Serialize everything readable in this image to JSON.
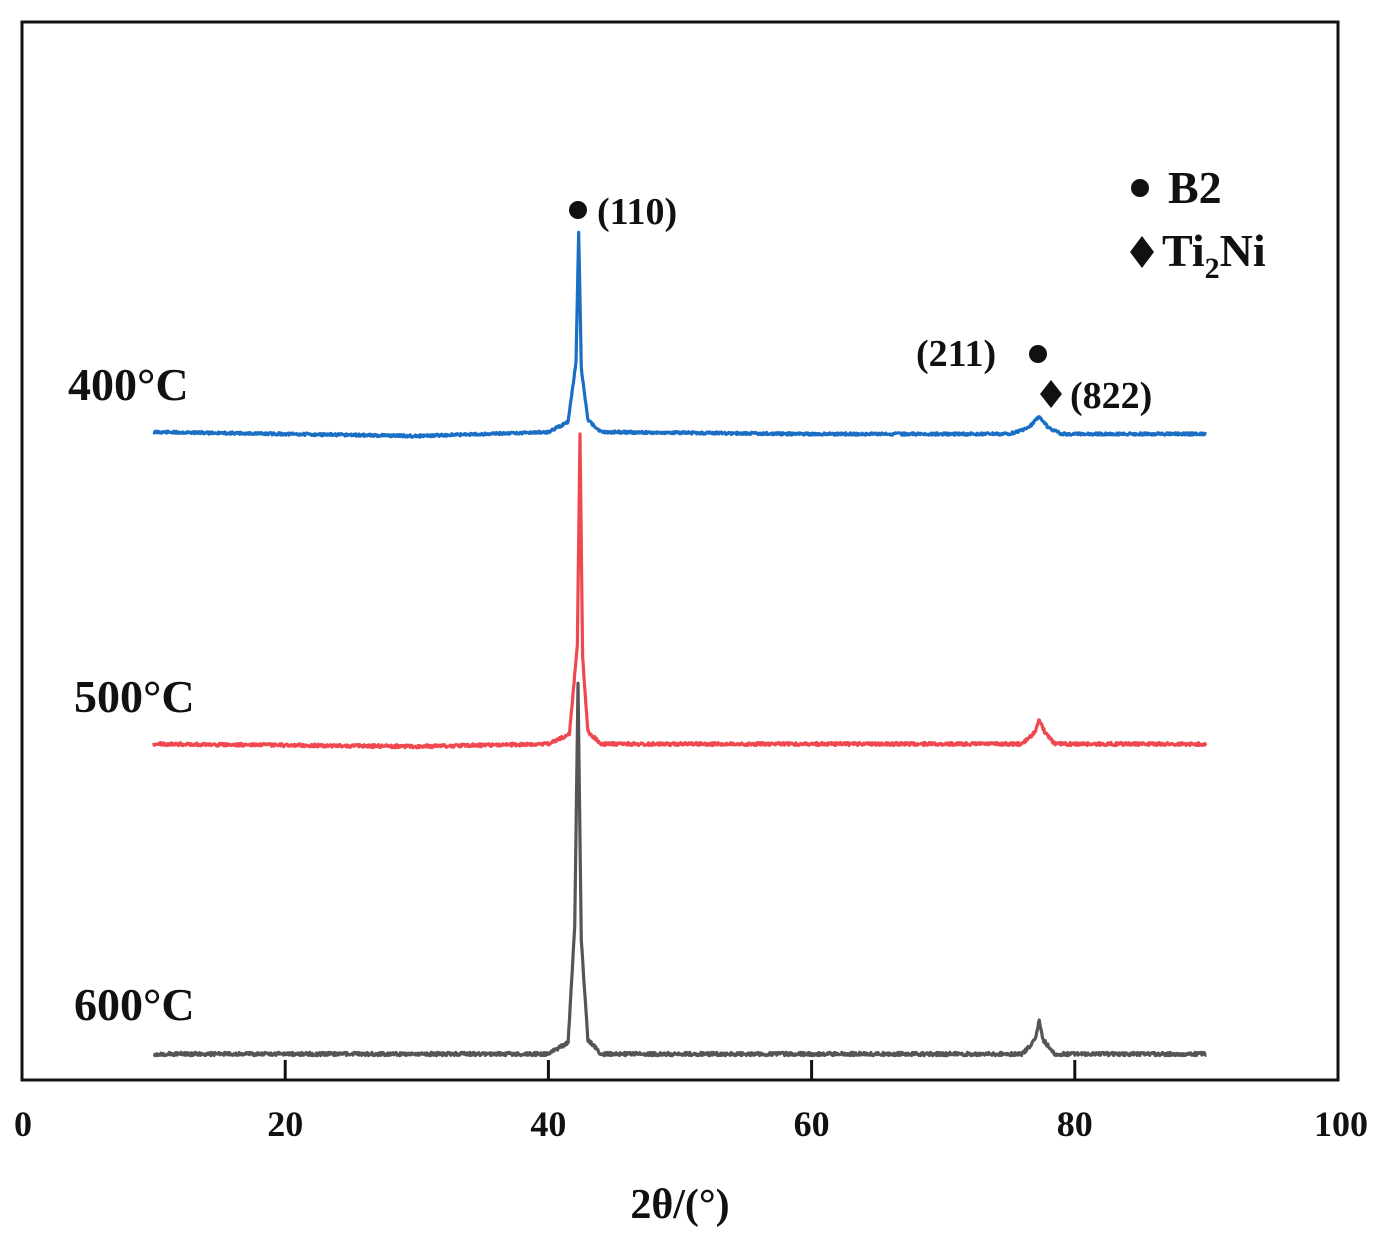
{
  "chart_data": {
    "type": "line",
    "title": "",
    "xlabel": "2θ/(°)",
    "ylabel": "",
    "xlim": [
      0,
      100
    ],
    "xticks": [
      0,
      20,
      40,
      60,
      80,
      100
    ],
    "grid": false,
    "yaxis_visible": false,
    "legend": {
      "placement": "top-right",
      "entries": [
        {
          "marker": "circle",
          "label": "B2"
        },
        {
          "marker": "diamond",
          "label": "Ti",
          "subscript": "2",
          "suffix": "Ni"
        }
      ]
    },
    "series": [
      {
        "name": "400°C",
        "color": "#1a6fc4",
        "baseline": 0.0,
        "x": [
          10,
          30,
          40,
          41.5,
          42.1,
          42.3,
          42.5,
          43.0,
          44,
          60,
          75,
          76.5,
          77.3,
          78,
          79,
          90
        ],
        "y": [
          1.0,
          0.98,
          1.0,
          1.05,
          1.35,
          2.0,
          1.32,
          1.06,
          1.0,
          0.99,
          0.99,
          1.02,
          1.08,
          1.02,
          0.99,
          0.99
        ]
      },
      {
        "name": "500°C",
        "color": "#f0484f",
        "x": [
          10,
          30,
          40,
          41.6,
          42.2,
          42.4,
          42.6,
          43.0,
          44,
          60,
          76,
          77.0,
          77.3,
          77.7,
          78.5,
          90
        ],
        "y": [
          1.0,
          0.99,
          1.0,
          1.04,
          1.4,
          2.25,
          1.35,
          1.05,
          1.0,
          1.0,
          1.0,
          1.05,
          1.1,
          1.05,
          1.0,
          1.0
        ]
      },
      {
        "name": "600°C",
        "color": "#555555",
        "x": [
          10,
          30,
          40,
          41.5,
          42.0,
          42.25,
          42.5,
          43.0,
          44,
          60,
          76,
          77.0,
          77.3,
          77.6,
          78.5,
          90
        ],
        "y": [
          1.0,
          1.0,
          1.0,
          1.04,
          1.45,
          2.3,
          1.4,
          1.05,
          1.0,
          1.0,
          1.0,
          1.05,
          1.12,
          1.05,
          1.0,
          1.0
        ]
      }
    ],
    "annotations": [
      {
        "marker": "circle",
        "label": "(110)",
        "x": 42.3,
        "series": "400°C"
      },
      {
        "marker": "circle",
        "label": "(211)",
        "x": 77.3,
        "series": "400°C"
      },
      {
        "marker": "diamond",
        "label": "(822)",
        "x": 78.2,
        "series": "400°C"
      }
    ]
  }
}
